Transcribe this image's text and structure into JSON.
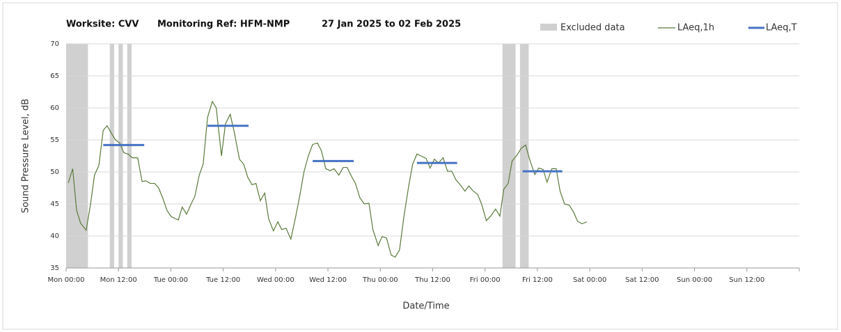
{
  "chart_data": {
    "type": "line",
    "title_parts": [
      "Worksite: CVV",
      "Monitoring Ref: HFM-NMP",
      "27 Jan 2025 to 02 Feb 2025"
    ],
    "x_label": "Date/Time",
    "y_label": "Sound Pressure Level, dB",
    "xlim": [
      0,
      168
    ],
    "ylim": [
      35,
      70
    ],
    "yticks": [
      35,
      40,
      45,
      50,
      55,
      60,
      65,
      70
    ],
    "xticks": [
      {
        "value": 0,
        "label": "Mon 00:00"
      },
      {
        "value": 12,
        "label": "Mon 12:00"
      },
      {
        "value": 24,
        "label": "Tue 00:00"
      },
      {
        "value": 36,
        "label": "Tue 12:00"
      },
      {
        "value": 48,
        "label": "Wed 00:00"
      },
      {
        "value": 60,
        "label": "Wed 12:00"
      },
      {
        "value": 72,
        "label": "Thu 00:00"
      },
      {
        "value": 84,
        "label": "Thu 12:00"
      },
      {
        "value": 96,
        "label": "Fri 00:00"
      },
      {
        "value": 108,
        "label": "Fri 12:00"
      },
      {
        "value": 120,
        "label": "Sat 00:00"
      },
      {
        "value": 132,
        "label": "Sat 12:00"
      },
      {
        "value": 144,
        "label": "Sun 00:00"
      },
      {
        "value": 156,
        "label": "Sun 12:00"
      }
    ],
    "grid": true,
    "excluded_name": "Excluded data",
    "excluded_color": "#d0d0d0",
    "excluded": [
      [
        0,
        5
      ],
      [
        10,
        11
      ],
      [
        12,
        13
      ],
      [
        14,
        15
      ],
      [
        100,
        103
      ],
      [
        104,
        106
      ]
    ],
    "series": [
      {
        "name": "LAeq,1h",
        "color": "#5a7a3a",
        "x": [
          0.5,
          1.5,
          2.4,
          3.3,
          4.6,
          5.6,
          6.5,
          7.5,
          8.5,
          9.4,
          10.4,
          11.3,
          12.3,
          13.2,
          14.2,
          15.2,
          16.4,
          17.4,
          18.3,
          19.3,
          20.3,
          21.2,
          22.2,
          23.1,
          24.1,
          25.7,
          26.6,
          27.6,
          28.5,
          29.5,
          30.5,
          31.4,
          32.4,
          33.5,
          34.4,
          35.6,
          36.5,
          37.6,
          38.6,
          39.7,
          40.7,
          41.6,
          42.6,
          43.5,
          44.5,
          45.5,
          46.4,
          47.5,
          48.5,
          49.4,
          50.4,
          51.5,
          52.6,
          53.6,
          54.5,
          55.5,
          56.5,
          57.6,
          58.5,
          59.5,
          60.5,
          61.4,
          62.5,
          63.5,
          64.4,
          65.4,
          66.3,
          67.3,
          68.3,
          69.4,
          70.3,
          71.5,
          72.4,
          73.4,
          74.5,
          75.4,
          76.4,
          77.4,
          78.5,
          79.4,
          80.4,
          81.3,
          82.5,
          83.4,
          84.4,
          85.3,
          86.4,
          87.4,
          88.4,
          89.3,
          90.3,
          91.4,
          92.3,
          93.3,
          94.3,
          95.2,
          96.3,
          97.3,
          98.4,
          99.4,
          100.3,
          101.3,
          102.2,
          103.3,
          104.3,
          105.3,
          106.2,
          107.4,
          108.3,
          109.3,
          110.2,
          111.3,
          112.3,
          113.2,
          114.2,
          115.3,
          116.3,
          117.2,
          118.2,
          119.3
        ],
        "values": [
          48.3,
          50.5,
          44,
          42,
          40.9,
          45,
          49.5,
          51,
          56.5,
          57.2,
          56,
          55,
          54.5,
          53,
          52.8,
          52.2,
          52.2,
          48.5,
          48.6,
          48.2,
          48.2,
          47.5,
          45.8,
          44,
          43,
          42.5,
          44.5,
          43.4,
          44.8,
          46.2,
          49.5,
          51.2,
          58.5,
          61,
          60,
          52.5,
          57.5,
          59,
          56,
          52,
          51.2,
          49.2,
          48,
          48.2,
          45.5,
          46.7,
          42.7,
          40.8,
          42.2,
          41,
          41.2,
          39.5,
          43,
          46.5,
          50,
          52.5,
          54.3,
          54.5,
          53.3,
          50.5,
          50.2,
          50.5,
          49.5,
          50.7,
          50.7,
          49.3,
          48.2,
          46,
          45,
          45.1,
          41,
          38.5,
          39.9,
          39.7,
          37,
          36.7,
          37.8,
          43,
          47.8,
          51.2,
          52.8,
          52.5,
          52.1,
          50.6,
          52,
          51.4,
          52.2,
          50.1,
          50.1,
          48.8,
          48,
          47,
          47.8,
          47,
          46.5,
          45,
          42.4,
          43.1,
          44.2,
          43.1,
          47.3,
          48.2,
          51.7,
          52.6,
          53.7,
          54.2,
          52,
          49.6,
          50.6,
          50.4,
          48.4,
          50.5,
          50.5,
          47,
          45,
          44.8,
          43.7,
          42.3,
          41.9,
          42.2
        ]
      },
      {
        "name": "LAeq,T",
        "color": "#4472c4",
        "segments": [
          {
            "x": [
              8.5,
              17.9
            ],
            "value": 54.2
          },
          {
            "x": [
              32.4,
              41.8
            ],
            "value": 57.2
          },
          {
            "x": [
              56.5,
              65.9
            ],
            "value": 51.7
          },
          {
            "x": [
              80.4,
              89.6
            ],
            "value": 51.4
          },
          {
            "x": [
              104.6,
              113.7
            ],
            "value": 50.1
          }
        ]
      }
    ]
  }
}
